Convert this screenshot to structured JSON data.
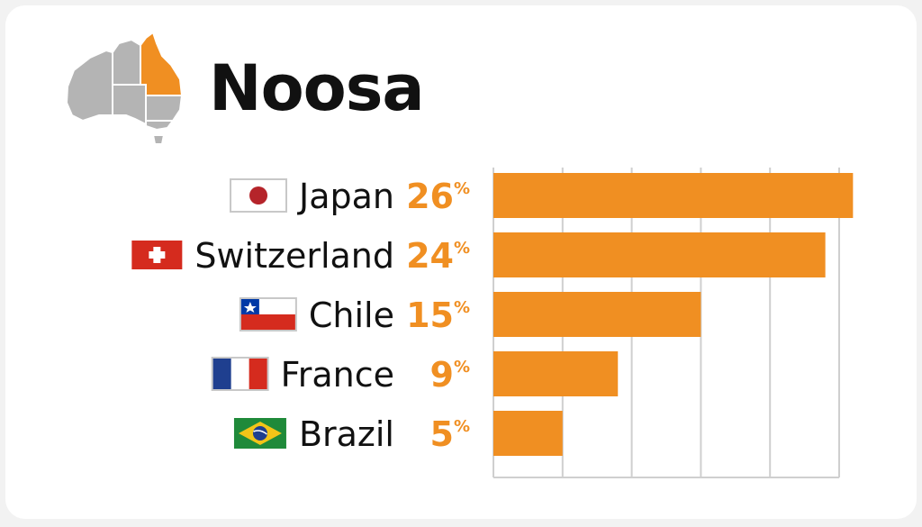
{
  "header": {
    "title": "Noosa"
  },
  "colors": {
    "accent": "#f08f22",
    "grid": "#cfcfcf",
    "map_gray": "#b4b4b4"
  },
  "map": {
    "icon": "australia-map-icon",
    "highlight": "Queensland"
  },
  "chart_data": {
    "type": "bar",
    "orientation": "horizontal",
    "categories": [
      "Japan",
      "Switzerland",
      "Chile",
      "France",
      "Brazil"
    ],
    "values": [
      26,
      24,
      15,
      9,
      5
    ],
    "value_unit": "%",
    "xlim": [
      0,
      25
    ],
    "grid": true,
    "legend": "none",
    "flags": [
      "japan-flag-icon",
      "switzerland-flag-icon",
      "chile-flag-icon",
      "france-flag-icon",
      "brazil-flag-icon"
    ]
  }
}
